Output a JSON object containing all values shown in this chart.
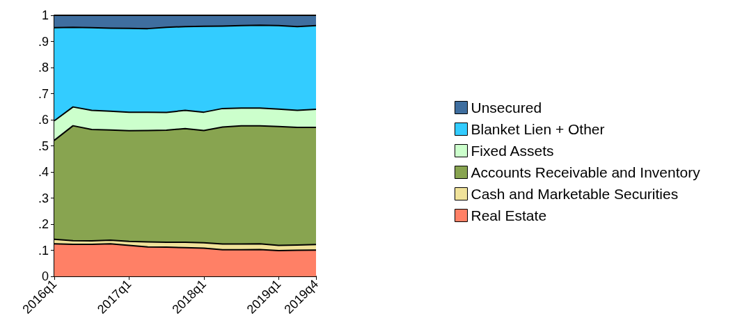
{
  "chart_data": {
    "type": "area",
    "stacked": true,
    "legend": "right",
    "grid": false,
    "categories": [
      "2016q1",
      null,
      null,
      null,
      "2017q1",
      null,
      null,
      null,
      "2018q1",
      null,
      null,
      null,
      "2019q1",
      null,
      "2019q4"
    ],
    "ylim": [
      0,
      1
    ],
    "yticks": [
      0,
      {
        "value": 0.1,
        "label": ".1"
      },
      {
        "value": 0.2,
        "label": ".2"
      },
      {
        "value": 0.3,
        "label": ".3"
      },
      {
        "value": 0.4,
        "label": ".4"
      },
      {
        "value": 0.5,
        "label": ".5"
      },
      {
        "value": 0.6,
        "label": ".6"
      },
      {
        "value": 0.7,
        "label": ".7"
      },
      {
        "value": 0.8,
        "label": ".8"
      },
      {
        "value": 0.9,
        "label": ".9"
      },
      1
    ],
    "series": [
      {
        "name": "Real Estate",
        "color": "#ff8066",
        "values": [
          0.125,
          0.123,
          0.123,
          0.125,
          0.119,
          0.113,
          0.112,
          0.11,
          0.108,
          0.102,
          0.102,
          0.103,
          0.099,
          0.1,
          0.101
        ]
      },
      {
        "name": "Cash and Marketable Securities",
        "color": "#f0e29a",
        "values": [
          0.017,
          0.014,
          0.013,
          0.014,
          0.015,
          0.019,
          0.019,
          0.021,
          0.021,
          0.022,
          0.022,
          0.022,
          0.02,
          0.02,
          0.021
        ]
      },
      {
        "name": "Accounts Receivable and Inventory",
        "color": "#88a450",
        "values": [
          0.379,
          0.44,
          0.427,
          0.422,
          0.424,
          0.427,
          0.429,
          0.435,
          0.43,
          0.448,
          0.453,
          0.452,
          0.455,
          0.451,
          0.449
        ]
      },
      {
        "name": "Fixed Assets",
        "color": "#ccffcc",
        "values": [
          0.075,
          0.072,
          0.073,
          0.072,
          0.071,
          0.07,
          0.068,
          0.07,
          0.07,
          0.071,
          0.068,
          0.068,
          0.067,
          0.065,
          0.069
        ]
      },
      {
        "name": "Blanket Lien + Other",
        "color": "#33ccff",
        "values": [
          0.357,
          0.305,
          0.317,
          0.318,
          0.321,
          0.32,
          0.326,
          0.321,
          0.329,
          0.316,
          0.316,
          0.317,
          0.32,
          0.321,
          0.321
        ]
      },
      {
        "name": "Unsecured",
        "color": "#3f6e9f",
        "values": [
          0.047,
          0.046,
          0.047,
          0.049,
          0.05,
          0.051,
          0.046,
          0.043,
          0.042,
          0.041,
          0.039,
          0.038,
          0.039,
          0.043,
          0.039
        ]
      }
    ]
  }
}
